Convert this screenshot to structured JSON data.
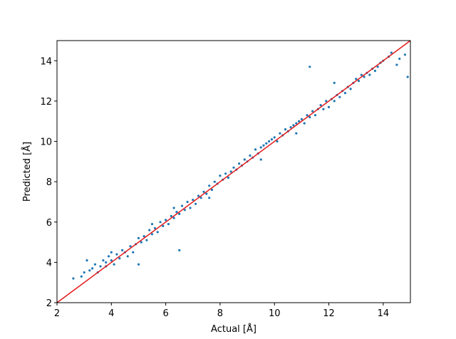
{
  "chart_data": {
    "type": "scatter",
    "xlabel": "Actual [Å]",
    "ylabel": "Predicted [Å]",
    "xlim": [
      2,
      15
    ],
    "ylim": [
      2,
      15
    ],
    "xticks": [
      2,
      4,
      6,
      8,
      10,
      12,
      14
    ],
    "yticks": [
      2,
      4,
      6,
      8,
      10,
      12,
      14
    ],
    "grid": false,
    "series": [
      {
        "color": "#1f77b4",
        "marker": "point",
        "points": [
          [
            2.6,
            3.2
          ],
          [
            2.9,
            3.3
          ],
          [
            3.0,
            3.5
          ],
          [
            3.1,
            4.1
          ],
          [
            3.2,
            3.6
          ],
          [
            3.3,
            3.7
          ],
          [
            3.4,
            3.9
          ],
          [
            3.5,
            3.5
          ],
          [
            3.6,
            3.8
          ],
          [
            3.7,
            4.1
          ],
          [
            3.8,
            4.0
          ],
          [
            3.8,
            3.8
          ],
          [
            3.9,
            4.3
          ],
          [
            4.0,
            4.1
          ],
          [
            4.0,
            4.5
          ],
          [
            4.1,
            3.9
          ],
          [
            4.2,
            4.4
          ],
          [
            4.3,
            4.2
          ],
          [
            4.4,
            4.6
          ],
          [
            4.5,
            4.5
          ],
          [
            4.6,
            4.3
          ],
          [
            4.7,
            4.8
          ],
          [
            4.8,
            4.5
          ],
          [
            4.9,
            4.9
          ],
          [
            5.0,
            5.2
          ],
          [
            5.0,
            3.9
          ],
          [
            5.1,
            5.0
          ],
          [
            5.2,
            5.3
          ],
          [
            5.3,
            5.1
          ],
          [
            5.4,
            5.6
          ],
          [
            5.5,
            5.4
          ],
          [
            5.5,
            5.9
          ],
          [
            5.6,
            5.7
          ],
          [
            5.7,
            5.5
          ],
          [
            5.8,
            6.0
          ],
          [
            5.9,
            5.8
          ],
          [
            6.0,
            6.1
          ],
          [
            6.1,
            5.9
          ],
          [
            6.2,
            6.3
          ],
          [
            6.3,
            6.2
          ],
          [
            6.4,
            6.5
          ],
          [
            6.5,
            6.4
          ],
          [
            6.5,
            4.6
          ],
          [
            6.6,
            6.8
          ],
          [
            6.7,
            6.6
          ],
          [
            6.8,
            7.0
          ],
          [
            6.9,
            6.7
          ],
          [
            7.0,
            7.1
          ],
          [
            7.1,
            6.9
          ],
          [
            7.2,
            7.3
          ],
          [
            7.3,
            7.2
          ],
          [
            7.4,
            7.5
          ],
          [
            7.5,
            7.4
          ],
          [
            7.6,
            7.8
          ],
          [
            7.7,
            7.6
          ],
          [
            7.8,
            8.0
          ],
          [
            7.9,
            7.9
          ],
          [
            8.0,
            8.3
          ],
          [
            8.1,
            8.1
          ],
          [
            8.2,
            8.4
          ],
          [
            8.3,
            8.2
          ],
          [
            8.4,
            8.5
          ],
          [
            8.5,
            8.7
          ],
          [
            8.6,
            8.6
          ],
          [
            8.7,
            8.9
          ],
          [
            8.8,
            8.8
          ],
          [
            8.9,
            9.1
          ],
          [
            9.0,
            9.0
          ],
          [
            9.1,
            9.3
          ],
          [
            9.2,
            9.2
          ],
          [
            9.3,
            9.6
          ],
          [
            9.4,
            9.4
          ],
          [
            9.5,
            9.7
          ],
          [
            9.6,
            9.8
          ],
          [
            9.7,
            9.9
          ],
          [
            9.8,
            10.0
          ],
          [
            9.9,
            10.1
          ],
          [
            10.0,
            10.2
          ],
          [
            10.1,
            10.0
          ],
          [
            10.2,
            10.4
          ],
          [
            10.3,
            10.3
          ],
          [
            10.4,
            10.6
          ],
          [
            10.5,
            10.5
          ],
          [
            10.6,
            10.7
          ],
          [
            10.7,
            10.8
          ],
          [
            10.8,
            10.9
          ],
          [
            10.9,
            11.0
          ],
          [
            11.0,
            11.1
          ],
          [
            11.1,
            10.9
          ],
          [
            11.2,
            11.3
          ],
          [
            11.3,
            11.2
          ],
          [
            11.3,
            13.7
          ],
          [
            11.4,
            11.5
          ],
          [
            11.5,
            11.3
          ],
          [
            11.6,
            11.6
          ],
          [
            11.7,
            11.8
          ],
          [
            11.8,
            11.6
          ],
          [
            11.9,
            12.0
          ],
          [
            12.0,
            11.7
          ],
          [
            12.1,
            12.1
          ],
          [
            12.2,
            12.0
          ],
          [
            12.3,
            12.3
          ],
          [
            12.4,
            12.2
          ],
          [
            12.5,
            12.5
          ],
          [
            12.6,
            12.4
          ],
          [
            12.7,
            12.7
          ],
          [
            12.8,
            12.6
          ],
          [
            12.9,
            12.9
          ],
          [
            13.0,
            13.1
          ],
          [
            13.1,
            13.0
          ],
          [
            13.2,
            13.3
          ],
          [
            13.3,
            13.2
          ],
          [
            13.4,
            13.4
          ],
          [
            13.5,
            13.3
          ],
          [
            13.6,
            13.6
          ],
          [
            13.7,
            13.5
          ],
          [
            13.8,
            13.7
          ],
          [
            13.9,
            13.9
          ],
          [
            14.0,
            14.0
          ],
          [
            14.2,
            14.2
          ],
          [
            14.3,
            14.4
          ],
          [
            14.5,
            13.8
          ],
          [
            14.6,
            14.1
          ],
          [
            14.8,
            14.3
          ],
          [
            14.9,
            13.2
          ],
          [
            9.5,
            9.1
          ],
          [
            10.8,
            10.4
          ],
          [
            12.2,
            12.9
          ],
          [
            6.3,
            6.7
          ],
          [
            7.6,
            7.2
          ]
        ]
      }
    ],
    "reference_line": {
      "color": "#e41a1c",
      "from": [
        2,
        2
      ],
      "to": [
        15,
        15
      ]
    }
  }
}
